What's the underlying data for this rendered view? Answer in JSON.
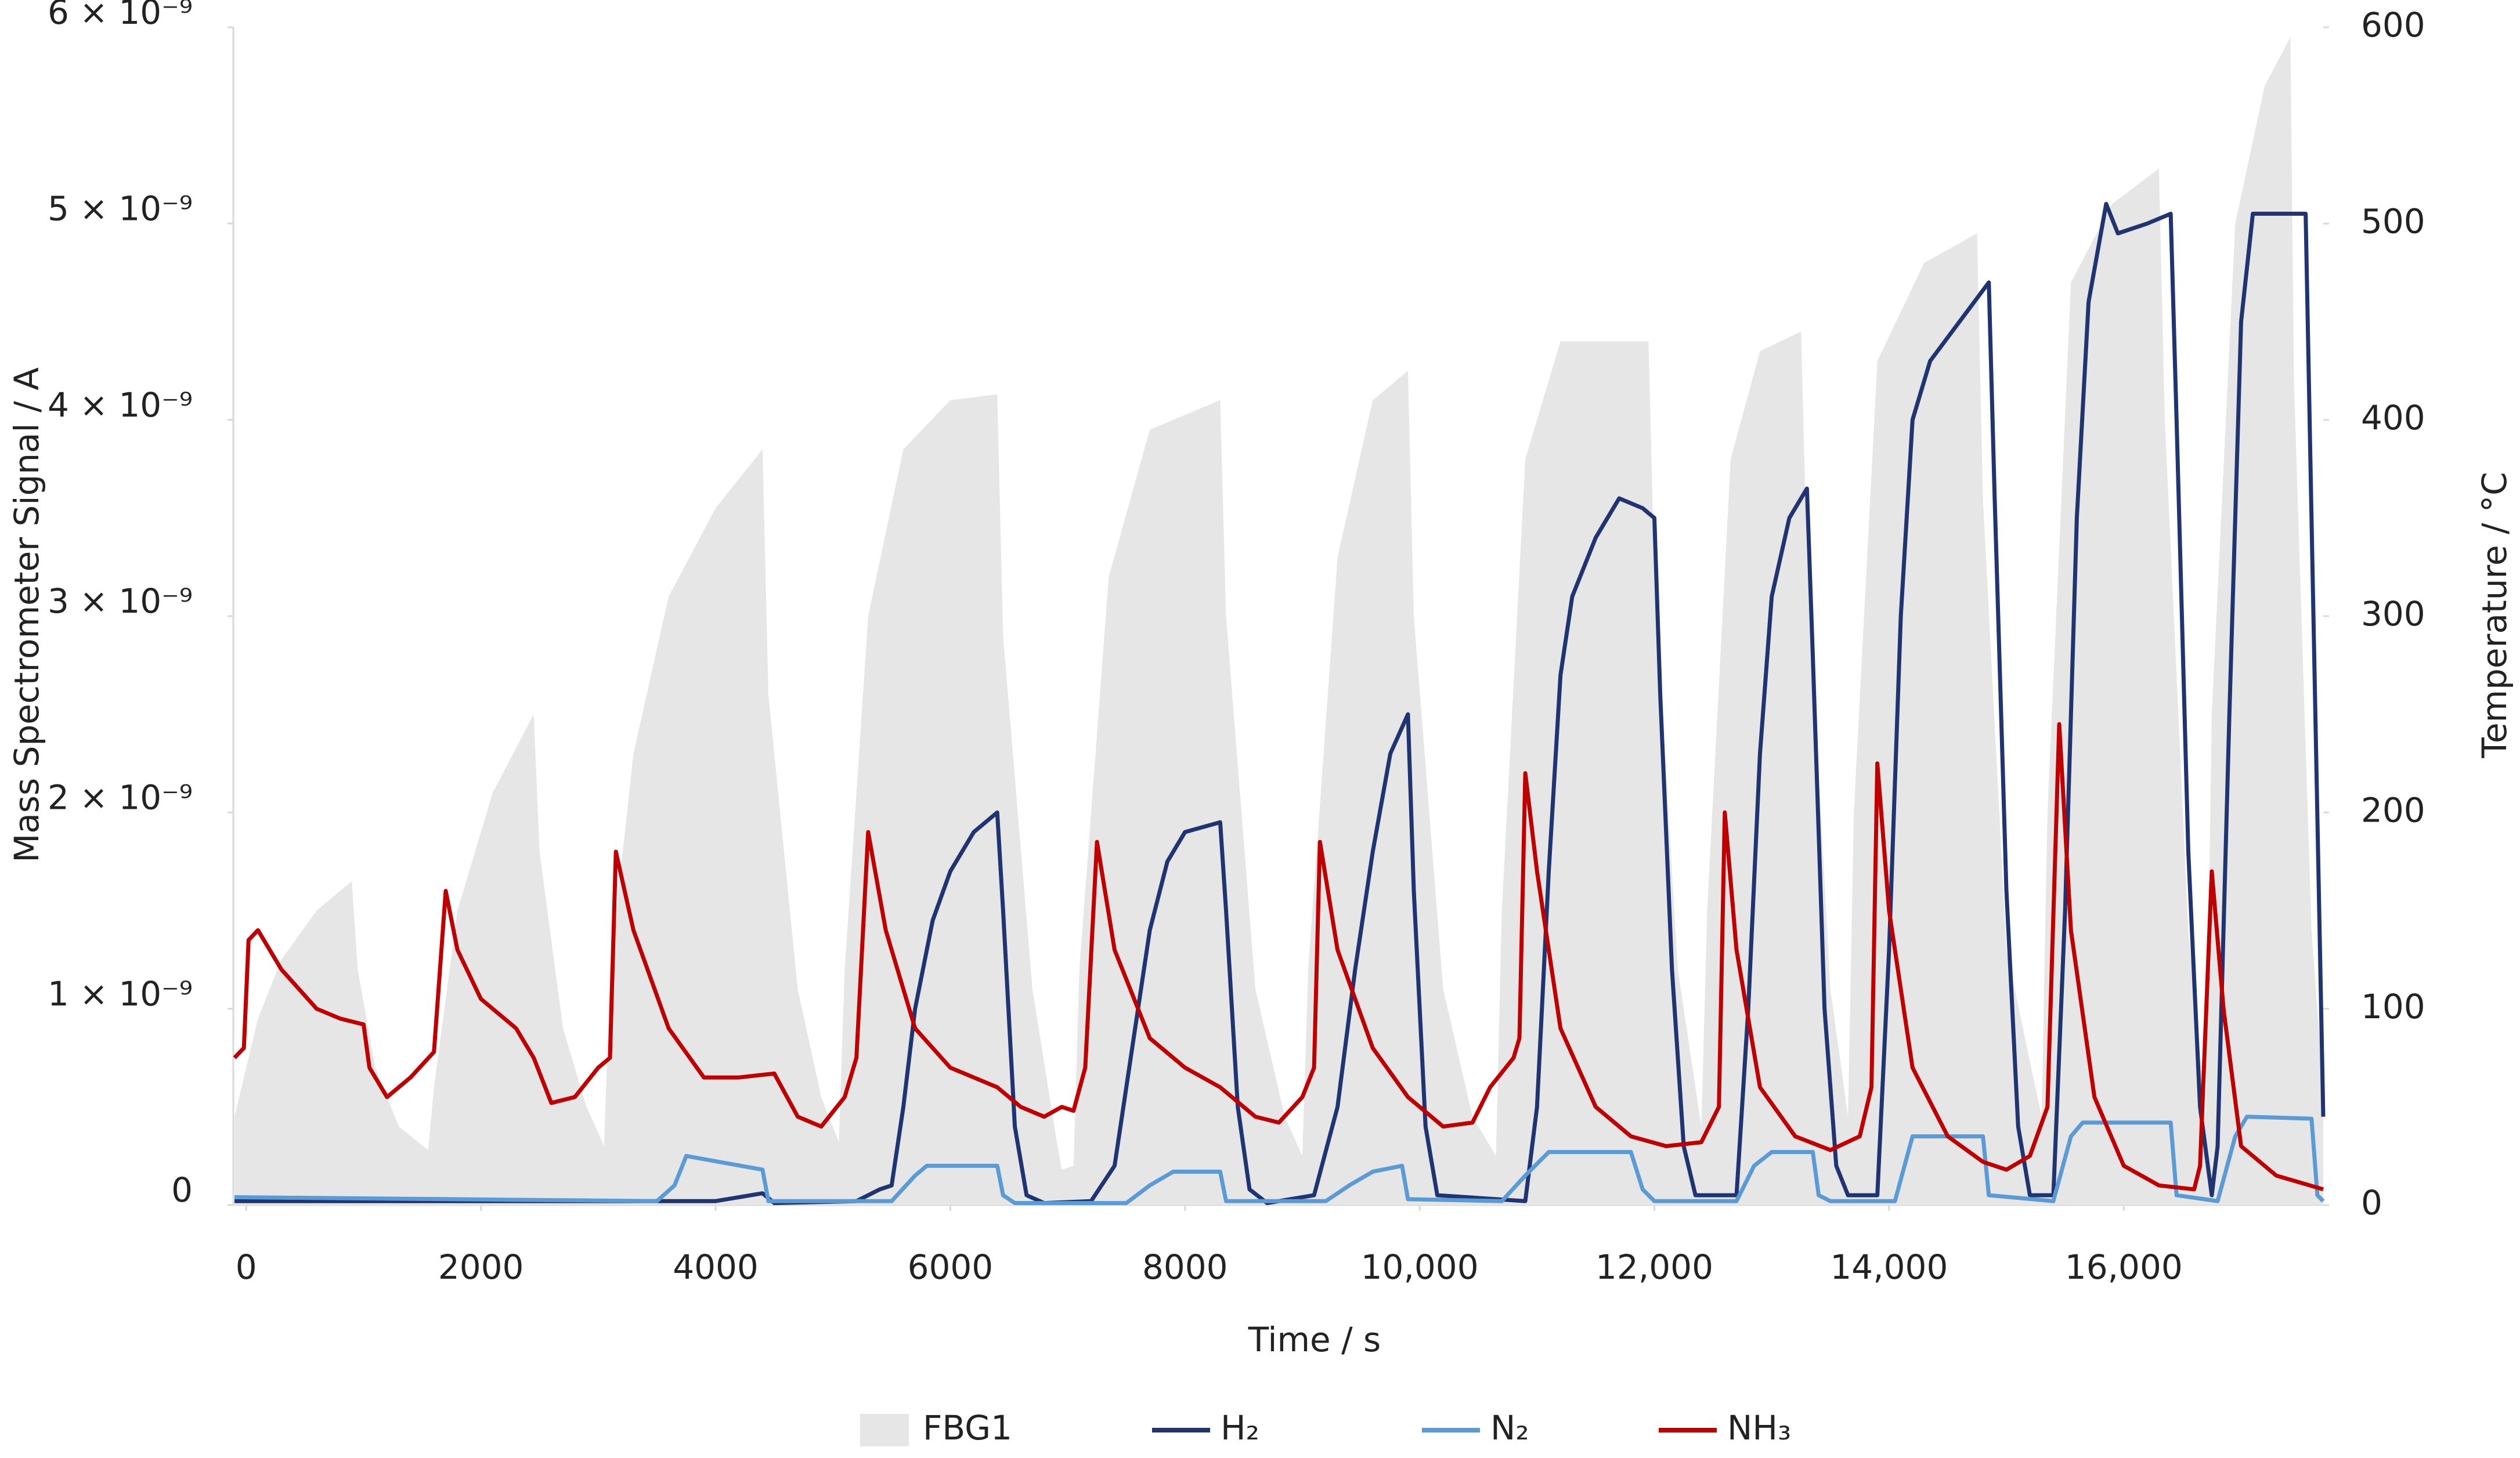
{
  "chart_data": {
    "type": "line",
    "xlabel": "Time / s",
    "ylabel": "Mass Spectrometer Signal / A",
    "y2label": "Temperature / °C",
    "xlim": [
      -110,
      17700
    ],
    "ylim": [
      0,
      6e-09
    ],
    "y2lim": [
      0,
      600
    ],
    "xticks": [
      0,
      2000,
      4000,
      6000,
      8000,
      {
        "value": 10000,
        "label": "10,000"
      },
      {
        "value": 12000,
        "label": "12,000"
      },
      {
        "value": 14000,
        "label": "14,000"
      },
      {
        "value": 16000,
        "label": "16,000"
      }
    ],
    "yticks": [
      0,
      {
        "value": 1e-09,
        "label": "1 × 10⁻⁹"
      },
      {
        "value": 2e-09,
        "label": "2 × 10⁻⁹"
      },
      {
        "value": 3e-09,
        "label": "3 × 10⁻⁹"
      },
      {
        "value": 4e-09,
        "label": "4 × 10⁻⁹"
      },
      {
        "value": 5e-09,
        "label": "5 × 10⁻⁹"
      },
      {
        "value": 6e-09,
        "label": "6 × 10⁻⁹"
      }
    ],
    "y2ticks": [
      0,
      100,
      200,
      300,
      400,
      500,
      600
    ],
    "grid": false,
    "legend": "bottom",
    "series": [
      {
        "name": "FBG1",
        "type": "area",
        "axis": "y2",
        "color": "#e6e6e6",
        "x": [
          -100,
          100,
          300,
          600,
          900,
          950,
          1100,
          1300,
          1550,
          1600,
          1800,
          2100,
          2450,
          2500,
          2700,
          2900,
          3050,
          3100,
          3300,
          3600,
          4000,
          4400,
          4450,
          4700,
          4900,
          5050,
          5100,
          5300,
          5600,
          6000,
          6400,
          6450,
          6700,
          6900,
          6950,
          7050,
          7100,
          7350,
          7700,
          8300,
          8350,
          8600,
          8850,
          9000,
          9050,
          9300,
          9600,
          9900,
          9950,
          10200,
          10450,
          10650,
          10700,
          10900,
          11200,
          11950,
          12000,
          12200,
          12400,
          12450,
          12650,
          12900,
          13250,
          13300,
          13500,
          13650,
          13700,
          13900,
          14300,
          14750,
          14800,
          15000,
          15300,
          15350,
          15550,
          15900,
          16300,
          16350,
          16550,
          16700,
          16750,
          16950,
          17200,
          17420,
          17450,
          17600,
          17700
        ],
        "values": [
          45,
          95,
          125,
          150,
          165,
          120,
          70,
          40,
          28,
          60,
          150,
          210,
          250,
          180,
          90,
          50,
          30,
          120,
          230,
          310,
          355,
          385,
          260,
          110,
          55,
          32,
          120,
          300,
          385,
          410,
          413,
          290,
          110,
          35,
          18,
          20,
          120,
          320,
          395,
          410,
          300,
          110,
          45,
          25,
          120,
          330,
          410,
          425,
          300,
          110,
          45,
          25,
          150,
          380,
          440,
          440,
          320,
          120,
          40,
          150,
          380,
          435,
          445,
          330,
          110,
          45,
          200,
          430,
          480,
          495,
          360,
          130,
          45,
          200,
          470,
          510,
          528,
          400,
          140,
          45,
          250,
          500,
          570,
          595,
          420,
          140,
          60
        ]
      },
      {
        "name": "H₂",
        "type": "line",
        "color": "#1f3470",
        "x": [
          -100,
          4000,
          4400,
          4500,
          5200,
          5400,
          5500,
          5600,
          5700,
          5850,
          6000,
          6200,
          6400,
          6450,
          6550,
          6650,
          6800,
          7200,
          7400,
          7550,
          7700,
          7850,
          8000,
          8300,
          8350,
          8450,
          8550,
          8700,
          9100,
          9300,
          9450,
          9600,
          9750,
          9900,
          9950,
          10050,
          10150,
          10900,
          11000,
          11100,
          11200,
          11300,
          11500,
          11700,
          11900,
          12000,
          12050,
          12150,
          12250,
          12350,
          12700,
          12800,
          12900,
          13000,
          13150,
          13300,
          13350,
          13450,
          13550,
          13650,
          13900,
          14000,
          14100,
          14200,
          14350,
          14600,
          14850,
          14900,
          15000,
          15100,
          15200,
          15400,
          15500,
          15600,
          15700,
          15850,
          15950,
          16200,
          16400,
          16450,
          16550,
          16650,
          16750,
          16800,
          16900,
          17000,
          17100,
          17550,
          17600,
          17700
        ],
        "values": [
          2e-11,
          2e-11,
          6e-11,
          1e-11,
          2e-11,
          8e-11,
          1e-10,
          5e-10,
          1e-09,
          1.45e-09,
          1.7e-09,
          1.9e-09,
          2e-09,
          1.5e-09,
          4e-10,
          5e-11,
          1e-11,
          2e-11,
          2e-10,
          8e-10,
          1.4e-09,
          1.75e-09,
          1.9e-09,
          1.95e-09,
          1.5e-09,
          5e-10,
          8e-11,
          1e-11,
          5e-11,
          5e-10,
          1.2e-09,
          1.8e-09,
          2.3e-09,
          2.5e-09,
          1.6e-09,
          4e-10,
          5e-11,
          2e-11,
          5e-10,
          1.7e-09,
          2.7e-09,
          3.1e-09,
          3.4e-09,
          3.6e-09,
          3.55e-09,
          3.5e-09,
          2.6e-09,
          1.2e-09,
          3e-10,
          5e-11,
          5e-11,
          1e-09,
          2.3e-09,
          3.1e-09,
          3.5e-09,
          3.65e-09,
          2.8e-09,
          1e-09,
          2e-10,
          5e-11,
          5e-11,
          1.3e-09,
          3e-09,
          4e-09,
          4.3e-09,
          4.5e-09,
          4.7e-09,
          3.6e-09,
          1.6e-09,
          4e-10,
          5e-11,
          5e-11,
          1.5e-09,
          3.5e-09,
          4.6e-09,
          5.1e-09,
          4.95e-09,
          5e-09,
          5.05e-09,
          4e-09,
          1.8e-09,
          5e-10,
          5e-11,
          3e-10,
          2.5e-09,
          4.5e-09,
          5.05e-09,
          5.05e-09,
          3.5e-09,
          4.5e-10
        ]
      },
      {
        "name": "N₂",
        "type": "line",
        "color": "#5b9bd5",
        "x": [
          -100,
          3500,
          3650,
          3750,
          4400,
          4450,
          5500,
          5700,
          5800,
          6400,
          6450,
          6550,
          7500,
          7700,
          7900,
          8300,
          8350,
          9200,
          9400,
          9600,
          9850,
          9900,
          10700,
          10900,
          11100,
          11800,
          11900,
          12000,
          12700,
          12850,
          13000,
          13350,
          13400,
          13500,
          14050,
          14200,
          14800,
          14850,
          15400,
          15550,
          15650,
          16400,
          16450,
          16800,
          16950,
          17050,
          17600,
          17650,
          17700
        ],
        "values": [
          4e-11,
          2e-11,
          1e-10,
          2.5e-10,
          1.8e-10,
          2e-11,
          2e-11,
          1.5e-10,
          2e-10,
          2e-10,
          5e-11,
          1e-11,
          1e-11,
          1e-10,
          1.7e-10,
          1.7e-10,
          2e-11,
          2e-11,
          1e-10,
          1.7e-10,
          2e-10,
          3e-11,
          2e-11,
          1.5e-10,
          2.7e-10,
          2.7e-10,
          8e-11,
          2e-11,
          2e-11,
          2e-10,
          2.7e-10,
          2.7e-10,
          5e-11,
          2e-11,
          2e-11,
          3.5e-10,
          3.5e-10,
          5e-11,
          2e-11,
          3.5e-10,
          4.2e-10,
          4.2e-10,
          5e-11,
          2e-11,
          3.5e-10,
          4.5e-10,
          4.4e-10,
          5e-11,
          2e-11
        ]
      },
      {
        "name": "NH₃",
        "type": "line",
        "color": "#c00000",
        "x": [
          -100,
          -20,
          20,
          100,
          300,
          600,
          800,
          1000,
          1050,
          1200,
          1400,
          1600,
          1700,
          1800,
          2000,
          2300,
          2450,
          2600,
          2800,
          3000,
          3100,
          3150,
          3300,
          3600,
          3900,
          4200,
          4500,
          4700,
          4900,
          5100,
          5200,
          5300,
          5450,
          5700,
          6000,
          6400,
          6600,
          6800,
          6950,
          7050,
          7150,
          7250,
          7400,
          7700,
          8000,
          8300,
          8600,
          8800,
          9000,
          9100,
          9150,
          9300,
          9600,
          9900,
          10200,
          10450,
          10600,
          10800,
          10850,
          10900,
          11000,
          11200,
          11500,
          11800,
          12100,
          12400,
          12550,
          12600,
          12700,
          12900,
          13200,
          13500,
          13750,
          13850,
          13900,
          14000,
          14200,
          14500,
          14800,
          15000,
          15200,
          15350,
          15450,
          15550,
          15750,
          16000,
          16300,
          16600,
          16650,
          16750,
          16850,
          17000,
          17300,
          17700
        ],
        "values": [
          7.5e-10,
          8e-10,
          1.35e-09,
          1.4e-09,
          1.2e-09,
          1e-09,
          9.5e-10,
          9.2e-10,
          7e-10,
          5.5e-10,
          6.5e-10,
          7.8e-10,
          1.6e-09,
          1.3e-09,
          1.05e-09,
          9e-10,
          7.5e-10,
          5.2e-10,
          5.5e-10,
          7e-10,
          7.5e-10,
          1.8e-09,
          1.4e-09,
          9e-10,
          6.5e-10,
          6.5e-10,
          6.7e-10,
          4.5e-10,
          4e-10,
          5.5e-10,
          7.5e-10,
          1.9e-09,
          1.4e-09,
          9e-10,
          7e-10,
          6e-10,
          5e-10,
          4.5e-10,
          5e-10,
          4.8e-10,
          7e-10,
          1.85e-09,
          1.3e-09,
          8.5e-10,
          7e-10,
          6e-10,
          4.5e-10,
          4.2e-10,
          5.5e-10,
          7e-10,
          1.85e-09,
          1.3e-09,
          8e-10,
          5.5e-10,
          4e-10,
          4.2e-10,
          6e-10,
          7.5e-10,
          8.5e-10,
          2.2e-09,
          1.7e-09,
          9e-10,
          5e-10,
          3.5e-10,
          3e-10,
          3.2e-10,
          5e-10,
          2e-09,
          1.3e-09,
          6e-10,
          3.5e-10,
          2.8e-10,
          3.5e-10,
          6e-10,
          2.25e-09,
          1.5e-09,
          7e-10,
          3.5e-10,
          2.2e-10,
          1.8e-10,
          2.5e-10,
          5e-10,
          2.45e-09,
          1.4e-09,
          5.5e-10,
          2e-10,
          1e-10,
          8e-11,
          2e-10,
          1.7e-09,
          1e-09,
          3e-10,
          1.5e-10,
          8e-11
        ]
      }
    ]
  }
}
